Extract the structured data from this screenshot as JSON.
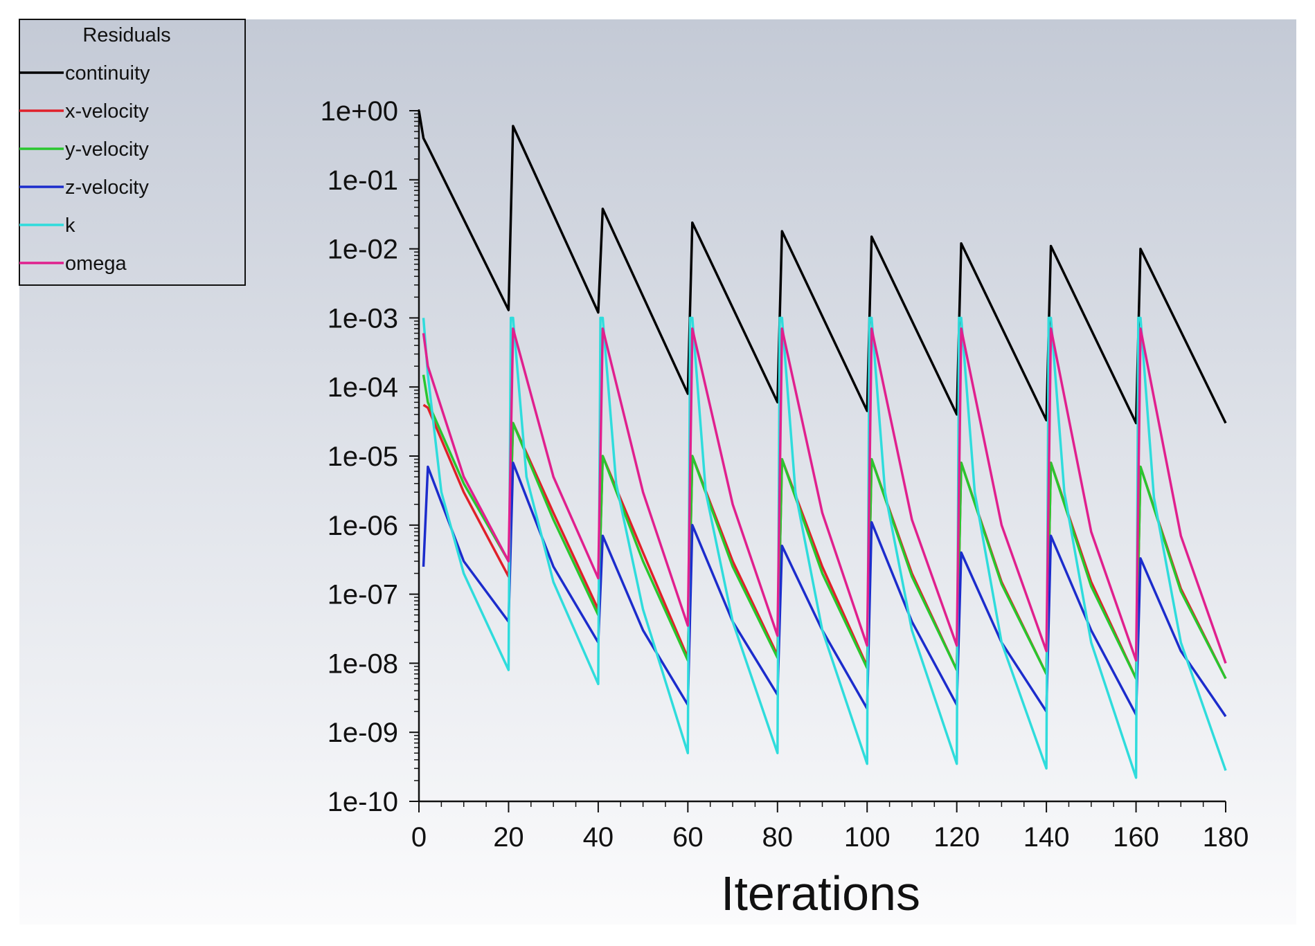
{
  "chart_data": {
    "type": "line",
    "title": "",
    "xlabel": "Iterations",
    "ylabel": "",
    "xlim": [
      0,
      180
    ],
    "ylim": [
      1e-10,
      1
    ],
    "yscale": "log",
    "grid": false,
    "legend_title": "Residuals",
    "legend_position": "top-left",
    "x_ticks": [
      "0",
      "20",
      "40",
      "60",
      "80",
      "100",
      "120",
      "140",
      "160",
      "180"
    ],
    "y_ticks": [
      "1e+00",
      "1e-01",
      "1e-02",
      "1e-03",
      "1e-04",
      "1e-05",
      "1e-06",
      "1e-07",
      "1e-08",
      "1e-09",
      "1e-10"
    ],
    "series": [
      {
        "name": "continuity",
        "color": "#000000",
        "x": [
          0,
          1,
          2,
          20,
          21,
          40,
          41,
          60,
          61,
          80,
          81,
          100,
          101,
          120,
          121,
          140,
          141,
          160,
          161,
          180
        ],
        "values": [
          1.0,
          0.4,
          0.3,
          0.0013,
          0.6,
          0.0012,
          0.038,
          8e-05,
          0.024,
          6e-05,
          0.018,
          4.5e-05,
          0.015,
          4e-05,
          0.012,
          3.3e-05,
          0.011,
          3e-05,
          0.01,
          3e-05
        ]
      },
      {
        "name": "x-velocity",
        "color": "#e0202a",
        "x": [
          1,
          2,
          10,
          20,
          21,
          30,
          40,
          41,
          50,
          60,
          61,
          70,
          80,
          81,
          90,
          100,
          101,
          110,
          120,
          121,
          130,
          140,
          141,
          150,
          160,
          161,
          170,
          180
        ],
        "values": [
          5.5e-05,
          5e-05,
          3e-06,
          1.8e-07,
          3e-05,
          1.5e-06,
          6e-08,
          1e-05,
          4e-07,
          1.2e-08,
          1e-05,
          3e-07,
          1.3e-08,
          9e-06,
          2.5e-07,
          9e-09,
          9e-06,
          2e-07,
          8e-09,
          8e-06,
          1.5e-07,
          7e-09,
          8e-06,
          1.5e-07,
          6e-09,
          7e-06,
          1.2e-07,
          6e-09
        ]
      },
      {
        "name": "y-velocity",
        "color": "#29c62f",
        "x": [
          1,
          2,
          10,
          20,
          21,
          30,
          40,
          41,
          50,
          60,
          61,
          70,
          80,
          81,
          90,
          100,
          101,
          110,
          120,
          121,
          130,
          140,
          141,
          150,
          160,
          161,
          170,
          180
        ],
        "values": [
          0.00015,
          6e-05,
          4e-06,
          3e-07,
          3e-05,
          1.2e-06,
          5e-08,
          1e-05,
          3e-07,
          1.1e-08,
          1e-05,
          2.5e-07,
          1.2e-08,
          9e-06,
          2e-07,
          8.5e-09,
          9e-06,
          1.8e-07,
          8e-09,
          8e-06,
          1.4e-07,
          7e-09,
          8e-06,
          1.3e-07,
          6e-09,
          7e-06,
          1.1e-07,
          6e-09
        ]
      },
      {
        "name": "z-velocity",
        "color": "#1c2ccc",
        "x": [
          1,
          2,
          10,
          20,
          21,
          30,
          40,
          41,
          50,
          60,
          61,
          70,
          80,
          81,
          90,
          100,
          101,
          110,
          120,
          121,
          130,
          140,
          141,
          150,
          160,
          161,
          170,
          180
        ],
        "values": [
          2.5e-07,
          7e-06,
          3e-07,
          4e-08,
          8e-06,
          2.5e-07,
          2e-08,
          7e-07,
          3e-08,
          2.5e-09,
          1e-06,
          4e-08,
          3.5e-09,
          5e-07,
          3e-08,
          2.2e-09,
          1.1e-06,
          4e-08,
          2.5e-09,
          4e-07,
          2e-08,
          2e-09,
          7e-07,
          3e-08,
          1.8e-09,
          3.3e-07,
          1.5e-08,
          1.7e-09
        ]
      },
      {
        "name": "k",
        "color": "#2fdcdc",
        "x": [
          1,
          2,
          5,
          10,
          20,
          20.5,
          21,
          24,
          30,
          40,
          40.5,
          41,
          44,
          50,
          60,
          60.5,
          61,
          64,
          70,
          80,
          80.5,
          81,
          84,
          90,
          100,
          100.5,
          101,
          104,
          110,
          120,
          120.5,
          121,
          124,
          130,
          140,
          140.5,
          141,
          144,
          150,
          160,
          160.5,
          161,
          164,
          170,
          180
        ],
        "values": [
          0.001,
          0.00015,
          3e-06,
          2e-07,
          8e-09,
          0.001,
          0.001,
          5e-06,
          1.5e-07,
          5e-09,
          0.001,
          0.001,
          4e-06,
          6e-08,
          5e-10,
          0.001,
          0.001,
          3e-06,
          4e-08,
          5e-10,
          0.001,
          0.001,
          3e-06,
          3e-08,
          3.5e-10,
          0.001,
          0.001,
          3e-06,
          3e-08,
          3.5e-10,
          0.001,
          0.001,
          3e-06,
          2e-08,
          3e-10,
          0.001,
          0.001,
          3e-06,
          2e-08,
          2.2e-10,
          0.001,
          0.001,
          2.5e-06,
          2e-08,
          2.8e-10
        ]
      },
      {
        "name": "omega",
        "color": "#e0208e",
        "x": [
          1,
          2,
          10,
          20,
          21,
          30,
          40,
          41,
          50,
          60,
          61,
          70,
          80,
          81,
          90,
          100,
          101,
          110,
          120,
          121,
          130,
          140,
          141,
          150,
          160,
          161,
          170,
          180
        ],
        "values": [
          0.0006,
          0.0002,
          5e-06,
          3e-07,
          0.0007,
          5e-06,
          1.7e-07,
          0.0007,
          3e-06,
          3.5e-08,
          0.0007,
          2e-06,
          2.5e-08,
          0.0007,
          1.5e-06,
          1.8e-08,
          0.0007,
          1.2e-06,
          1.8e-08,
          0.0007,
          1e-06,
          1.5e-08,
          0.0007,
          8e-07,
          1.1e-08,
          0.0007,
          7e-07,
          1e-08
        ]
      }
    ]
  }
}
